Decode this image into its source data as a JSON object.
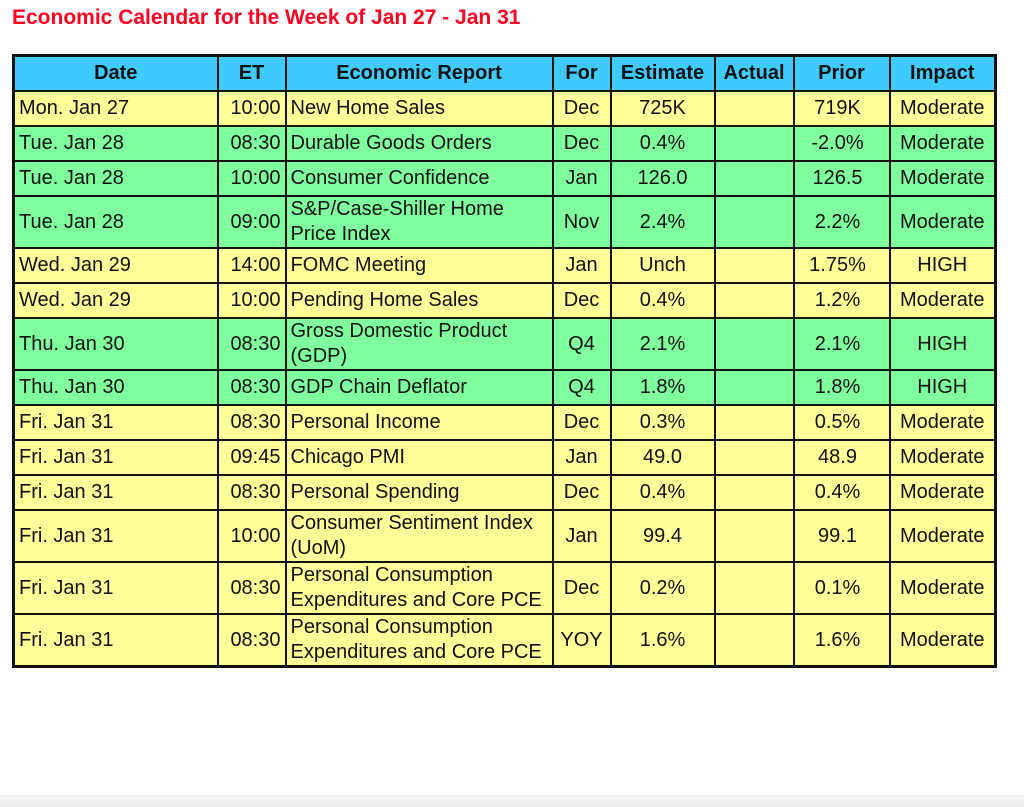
{
  "title": "Economic Calendar for the Week of Jan 27 - Jan 31",
  "headers": [
    "Date",
    "ET",
    "Economic Report",
    "For",
    "Estimate",
    "Actual",
    "Prior",
    "Impact"
  ],
  "rows": [
    {
      "color": "y",
      "date": "Mon. Jan 27",
      "et": "10:00",
      "report": "New Home Sales",
      "for": "Dec",
      "estimate": "725K",
      "actual": "",
      "prior": "719K",
      "impact": "Moderate"
    },
    {
      "color": "g",
      "date": "Tue. Jan 28",
      "et": "08:30",
      "report": "Durable Goods Orders",
      "for": "Dec",
      "estimate": "0.4%",
      "actual": "",
      "prior": "-2.0%",
      "impact": "Moderate"
    },
    {
      "color": "g",
      "date": "Tue. Jan 28",
      "et": "10:00",
      "report": "Consumer Confidence",
      "for": "Jan",
      "estimate": "126.0",
      "actual": "",
      "prior": "126.5",
      "impact": "Moderate"
    },
    {
      "color": "g",
      "date": "Tue. Jan 28",
      "et": "09:00",
      "report": "S&P/Case-Shiller Home Price Index",
      "for": "Nov",
      "estimate": "2.4%",
      "actual": "",
      "prior": "2.2%",
      "impact": "Moderate"
    },
    {
      "color": "y",
      "date": "Wed. Jan 29",
      "et": "14:00",
      "report": "FOMC Meeting",
      "for": "Jan",
      "estimate": "Unch",
      "actual": "",
      "prior": "1.75%",
      "impact": "HIGH"
    },
    {
      "color": "y",
      "date": "Wed. Jan 29",
      "et": "10:00",
      "report": "Pending Home Sales",
      "for": "Dec",
      "estimate": "0.4%",
      "actual": "",
      "prior": "1.2%",
      "impact": "Moderate"
    },
    {
      "color": "g",
      "date": "Thu. Jan 30",
      "et": "08:30",
      "report": "Gross Domestic Product (GDP)",
      "for": "Q4",
      "estimate": "2.1%",
      "actual": "",
      "prior": "2.1%",
      "impact": "HIGH"
    },
    {
      "color": "g",
      "date": "Thu. Jan 30",
      "et": "08:30",
      "report": "GDP Chain Deflator",
      "for": "Q4",
      "estimate": "1.8%",
      "actual": "",
      "prior": "1.8%",
      "impact": "HIGH"
    },
    {
      "color": "y",
      "date": "Fri. Jan 31",
      "et": "08:30",
      "report": "Personal Income",
      "for": "Dec",
      "estimate": "0.3%",
      "actual": "",
      "prior": "0.5%",
      "impact": "Moderate"
    },
    {
      "color": "y",
      "date": "Fri. Jan 31",
      "et": "09:45",
      "report": "Chicago PMI",
      "for": "Jan",
      "estimate": "49.0",
      "actual": "",
      "prior": "48.9",
      "impact": "Moderate"
    },
    {
      "color": "y",
      "date": "Fri. Jan 31",
      "et": "08:30",
      "report": "Personal Spending",
      "for": "Dec",
      "estimate": "0.4%",
      "actual": "",
      "prior": "0.4%",
      "impact": "Moderate"
    },
    {
      "color": "y",
      "date": "Fri. Jan 31",
      "et": "10:00",
      "report": "Consumer Sentiment Index (UoM)",
      "for": "Jan",
      "estimate": "99.4",
      "actual": "",
      "prior": "99.1",
      "impact": "Moderate"
    },
    {
      "color": "y",
      "date": "Fri. Jan 31",
      "et": "08:30",
      "report": "Personal Consumption Expenditures and Core PCE",
      "for": "Dec",
      "estimate": "0.2%",
      "actual": "",
      "prior": "0.1%",
      "impact": "Moderate"
    },
    {
      "color": "y",
      "date": "Fri. Jan 31",
      "et": "08:30",
      "report": "Personal Consumption Expenditures and Core PCE",
      "for": "YOY",
      "estimate": "1.6%",
      "actual": "",
      "prior": "1.6%",
      "impact": "Moderate"
    }
  ],
  "colors": {
    "header": "#40cbff",
    "y": "#ffff99",
    "g": "#80ff9f",
    "title": "#ff0020"
  }
}
